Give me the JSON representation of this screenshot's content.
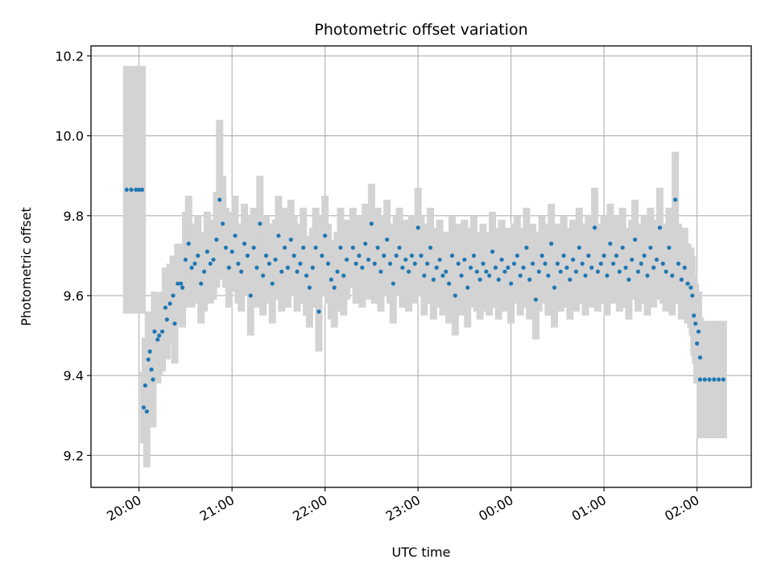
{
  "chart_data": {
    "type": "scatter",
    "title": "Photometric offset variation",
    "xlabel": "UTC time",
    "ylabel": "Photometric offset",
    "x_ticks": [
      "20:00",
      "21:00",
      "22:00",
      "23:00",
      "00:00",
      "01:00",
      "02:00"
    ],
    "y_ticks": [
      "9.2",
      "9.4",
      "9.6",
      "9.8",
      "10.0",
      "10.2"
    ],
    "xlim": [
      "19:29",
      "02:35"
    ],
    "ylim": [
      9.12,
      10.225
    ],
    "grid": true,
    "colors": {
      "points": "#1f77b4",
      "errorbars": "#d3d3d3",
      "grid": "#b0b0b0"
    },
    "series": [
      {
        "errorbars": true,
        "points": [
          [
            "19:52",
            9.865,
            0.31
          ],
          [
            "19:55",
            9.865,
            0.31
          ],
          [
            "19:58",
            9.865,
            0.31
          ],
          [
            "20:00",
            9.865,
            0.31
          ],
          [
            "20:02",
            9.865,
            0.31
          ],
          [
            "20:03",
            9.32,
            0.09
          ],
          [
            "20:04",
            9.375,
            0.12
          ],
          [
            "20:05",
            9.31,
            0.14
          ],
          [
            "20:06",
            9.44,
            0.12
          ],
          [
            "20:07",
            9.46,
            0.1
          ],
          [
            "20:08",
            9.415,
            0.13
          ],
          [
            "20:09",
            9.39,
            0.12
          ],
          [
            "20:10",
            9.51,
            0.1
          ],
          [
            "20:12",
            9.49,
            0.11
          ],
          [
            "20:13",
            9.5,
            0.1
          ],
          [
            "20:15",
            9.51,
            0.1
          ],
          [
            "20:17",
            9.57,
            0.1
          ],
          [
            "20:18",
            9.54,
            0.1
          ],
          [
            "20:20",
            9.58,
            0.1
          ],
          [
            "20:22",
            9.6,
            0.1
          ],
          [
            "20:23",
            9.53,
            0.1
          ],
          [
            "20:25",
            9.63,
            0.1
          ],
          [
            "20:27",
            9.63,
            0.1
          ],
          [
            "20:28",
            9.62,
            0.1
          ],
          [
            "20:30",
            9.69,
            0.12
          ],
          [
            "20:32",
            9.73,
            0.12
          ],
          [
            "20:34",
            9.67,
            0.1
          ],
          [
            "20:36",
            9.68,
            0.1
          ],
          [
            "20:38",
            9.7,
            0.1
          ],
          [
            "20:40",
            9.63,
            0.1
          ],
          [
            "20:42",
            9.66,
            0.1
          ],
          [
            "20:44",
            9.71,
            0.1
          ],
          [
            "20:46",
            9.68,
            0.1
          ],
          [
            "20:48",
            9.69,
            0.1
          ],
          [
            "20:50",
            9.74,
            0.12
          ],
          [
            "20:52",
            9.84,
            0.2
          ],
          [
            "20:54",
            9.78,
            0.12
          ],
          [
            "20:56",
            9.72,
            0.1
          ],
          [
            "20:58",
            9.67,
            0.1
          ],
          [
            "21:00",
            9.71,
            0.1
          ],
          [
            "21:02",
            9.75,
            0.1
          ],
          [
            "21:04",
            9.68,
            0.1
          ],
          [
            "21:06",
            9.66,
            0.1
          ],
          [
            "21:08",
            9.73,
            0.1
          ],
          [
            "21:10",
            9.7,
            0.1
          ],
          [
            "21:12",
            9.6,
            0.1
          ],
          [
            "21:14",
            9.72,
            0.1
          ],
          [
            "21:16",
            9.67,
            0.1
          ],
          [
            "21:18",
            9.78,
            0.12
          ],
          [
            "21:20",
            9.65,
            0.1
          ],
          [
            "21:22",
            9.7,
            0.1
          ],
          [
            "21:24",
            9.68,
            0.1
          ],
          [
            "21:26",
            9.63,
            0.1
          ],
          [
            "21:28",
            9.69,
            0.1
          ],
          [
            "21:30",
            9.75,
            0.1
          ],
          [
            "21:32",
            9.66,
            0.1
          ],
          [
            "21:34",
            9.72,
            0.1
          ],
          [
            "21:36",
            9.67,
            0.1
          ],
          [
            "21:38",
            9.74,
            0.1
          ],
          [
            "21:40",
            9.7,
            0.1
          ],
          [
            "21:42",
            9.66,
            0.1
          ],
          [
            "21:44",
            9.68,
            0.1
          ],
          [
            "21:46",
            9.72,
            0.1
          ],
          [
            "21:48",
            9.65,
            0.1
          ],
          [
            "21:50",
            9.62,
            0.1
          ],
          [
            "21:52",
            9.67,
            0.1
          ],
          [
            "21:54",
            9.72,
            0.1
          ],
          [
            "21:56",
            9.56,
            0.1
          ],
          [
            "21:58",
            9.7,
            0.1
          ],
          [
            "22:00",
            9.75,
            0.1
          ],
          [
            "22:02",
            9.68,
            0.1
          ],
          [
            "22:04",
            9.64,
            0.1
          ],
          [
            "22:06",
            9.62,
            0.1
          ],
          [
            "22:08",
            9.66,
            0.1
          ],
          [
            "22:10",
            9.72,
            0.1
          ],
          [
            "22:12",
            9.65,
            0.1
          ],
          [
            "22:14",
            9.69,
            0.1
          ],
          [
            "22:18",
            9.72,
            0.1
          ],
          [
            "22:20",
            9.68,
            0.1
          ],
          [
            "22:22",
            9.7,
            0.1
          ],
          [
            "22:24",
            9.67,
            0.1
          ],
          [
            "22:26",
            9.73,
            0.1
          ],
          [
            "22:28",
            9.69,
            0.1
          ],
          [
            "22:30",
            9.78,
            0.1
          ],
          [
            "22:32",
            9.68,
            0.1
          ],
          [
            "22:34",
            9.72,
            0.1
          ],
          [
            "22:36",
            9.66,
            0.1
          ],
          [
            "22:38",
            9.7,
            0.1
          ],
          [
            "22:40",
            9.74,
            0.1
          ],
          [
            "22:42",
            9.68,
            0.1
          ],
          [
            "22:44",
            9.63,
            0.1
          ],
          [
            "22:46",
            9.7,
            0.1
          ],
          [
            "22:48",
            9.72,
            0.1
          ],
          [
            "22:50",
            9.67,
            0.1
          ],
          [
            "22:52",
            9.69,
            0.1
          ],
          [
            "22:54",
            9.66,
            0.1
          ],
          [
            "22:56",
            9.7,
            0.1
          ],
          [
            "22:58",
            9.68,
            0.1
          ],
          [
            "23:00",
            9.77,
            0.1
          ],
          [
            "23:02",
            9.7,
            0.1
          ],
          [
            "23:04",
            9.65,
            0.1
          ],
          [
            "23:06",
            9.68,
            0.1
          ],
          [
            "23:08",
            9.72,
            0.1
          ],
          [
            "23:10",
            9.64,
            0.1
          ],
          [
            "23:12",
            9.67,
            0.1
          ],
          [
            "23:14",
            9.69,
            0.1
          ],
          [
            "23:16",
            9.65,
            0.1
          ],
          [
            "23:18",
            9.66,
            0.1
          ],
          [
            "23:20",
            9.63,
            0.1
          ],
          [
            "23:22",
            9.7,
            0.1
          ],
          [
            "23:24",
            9.6,
            0.1
          ],
          [
            "23:26",
            9.68,
            0.1
          ],
          [
            "23:28",
            9.65,
            0.1
          ],
          [
            "23:30",
            9.69,
            0.1
          ],
          [
            "23:32",
            9.62,
            0.1
          ],
          [
            "23:34",
            9.67,
            0.1
          ],
          [
            "23:36",
            9.7,
            0.1
          ],
          [
            "23:38",
            9.66,
            0.1
          ],
          [
            "23:40",
            9.64,
            0.1
          ],
          [
            "23:42",
            9.68,
            0.1
          ],
          [
            "23:44",
            9.66,
            0.1
          ],
          [
            "23:46",
            9.65,
            0.1
          ],
          [
            "23:48",
            9.71,
            0.1
          ],
          [
            "23:50",
            9.67,
            0.1
          ],
          [
            "23:52",
            9.64,
            0.1
          ],
          [
            "23:54",
            9.69,
            0.1
          ],
          [
            "23:56",
            9.66,
            0.1
          ],
          [
            "23:58",
            9.67,
            0.1
          ],
          [
            "00:00",
            9.63,
            0.1
          ],
          [
            "00:02",
            9.68,
            0.1
          ],
          [
            "00:04",
            9.7,
            0.1
          ],
          [
            "00:06",
            9.65,
            0.1
          ],
          [
            "00:08",
            9.67,
            0.1
          ],
          [
            "00:10",
            9.72,
            0.1
          ],
          [
            "00:12",
            9.64,
            0.1
          ],
          [
            "00:14",
            9.68,
            0.1
          ],
          [
            "00:16",
            9.59,
            0.1
          ],
          [
            "00:18",
            9.66,
            0.1
          ],
          [
            "00:20",
            9.7,
            0.1
          ],
          [
            "00:22",
            9.68,
            0.1
          ],
          [
            "00:24",
            9.65,
            0.1
          ],
          [
            "00:26",
            9.73,
            0.1
          ],
          [
            "00:28",
            9.62,
            0.1
          ],
          [
            "00:30",
            9.68,
            0.1
          ],
          [
            "00:32",
            9.66,
            0.1
          ],
          [
            "00:34",
            9.7,
            0.1
          ],
          [
            "00:36",
            9.67,
            0.1
          ],
          [
            "00:38",
            9.64,
            0.1
          ],
          [
            "00:40",
            9.69,
            0.1
          ],
          [
            "00:42",
            9.66,
            0.1
          ],
          [
            "00:44",
            9.72,
            0.1
          ],
          [
            "00:46",
            9.68,
            0.1
          ],
          [
            "00:48",
            9.65,
            0.1
          ],
          [
            "00:50",
            9.7,
            0.1
          ],
          [
            "00:52",
            9.67,
            0.1
          ],
          [
            "00:54",
            9.77,
            0.1
          ],
          [
            "00:56",
            9.66,
            0.1
          ],
          [
            "00:58",
            9.68,
            0.1
          ],
          [
            "01:00",
            9.7,
            0.1
          ],
          [
            "01:02",
            9.65,
            0.1
          ],
          [
            "01:04",
            9.73,
            0.1
          ],
          [
            "01:06",
            9.68,
            0.1
          ],
          [
            "01:08",
            9.7,
            0.1
          ],
          [
            "01:10",
            9.66,
            0.1
          ],
          [
            "01:12",
            9.72,
            0.1
          ],
          [
            "01:14",
            9.67,
            0.1
          ],
          [
            "01:16",
            9.64,
            0.1
          ],
          [
            "01:18",
            9.69,
            0.1
          ],
          [
            "01:20",
            9.74,
            0.1
          ],
          [
            "01:22",
            9.66,
            0.1
          ],
          [
            "01:24",
            9.68,
            0.1
          ],
          [
            "01:26",
            9.7,
            0.1
          ],
          [
            "01:28",
            9.65,
            0.1
          ],
          [
            "01:30",
            9.72,
            0.1
          ],
          [
            "01:32",
            9.67,
            0.1
          ],
          [
            "01:34",
            9.69,
            0.1
          ],
          [
            "01:36",
            9.77,
            0.1
          ],
          [
            "01:38",
            9.68,
            0.1
          ],
          [
            "01:40",
            9.66,
            0.1
          ],
          [
            "01:42",
            9.72,
            0.1
          ],
          [
            "01:44",
            9.65,
            0.1
          ],
          [
            "01:46",
            9.84,
            0.12
          ],
          [
            "01:48",
            9.68,
            0.1
          ],
          [
            "01:50",
            9.64,
            0.1
          ],
          [
            "01:52",
            9.67,
            0.1
          ],
          [
            "01:54",
            9.63,
            0.1
          ],
          [
            "01:56",
            9.62,
            0.1
          ],
          [
            "01:57",
            9.6,
            0.1
          ],
          [
            "01:58",
            9.55,
            0.1
          ],
          [
            "01:59",
            9.53,
            0.1
          ],
          [
            "02:00",
            9.48,
            0.1
          ],
          [
            "02:01",
            9.51,
            0.1
          ],
          [
            "02:02",
            9.445,
            0.1
          ],
          [
            "02:02",
            9.39,
            0.147
          ],
          [
            "02:05",
            9.39,
            0.147
          ],
          [
            "02:08",
            9.39,
            0.147
          ],
          [
            "02:11",
            9.39,
            0.147
          ],
          [
            "02:14",
            9.39,
            0.147
          ],
          [
            "02:17",
            9.39,
            0.147
          ]
        ]
      }
    ]
  }
}
